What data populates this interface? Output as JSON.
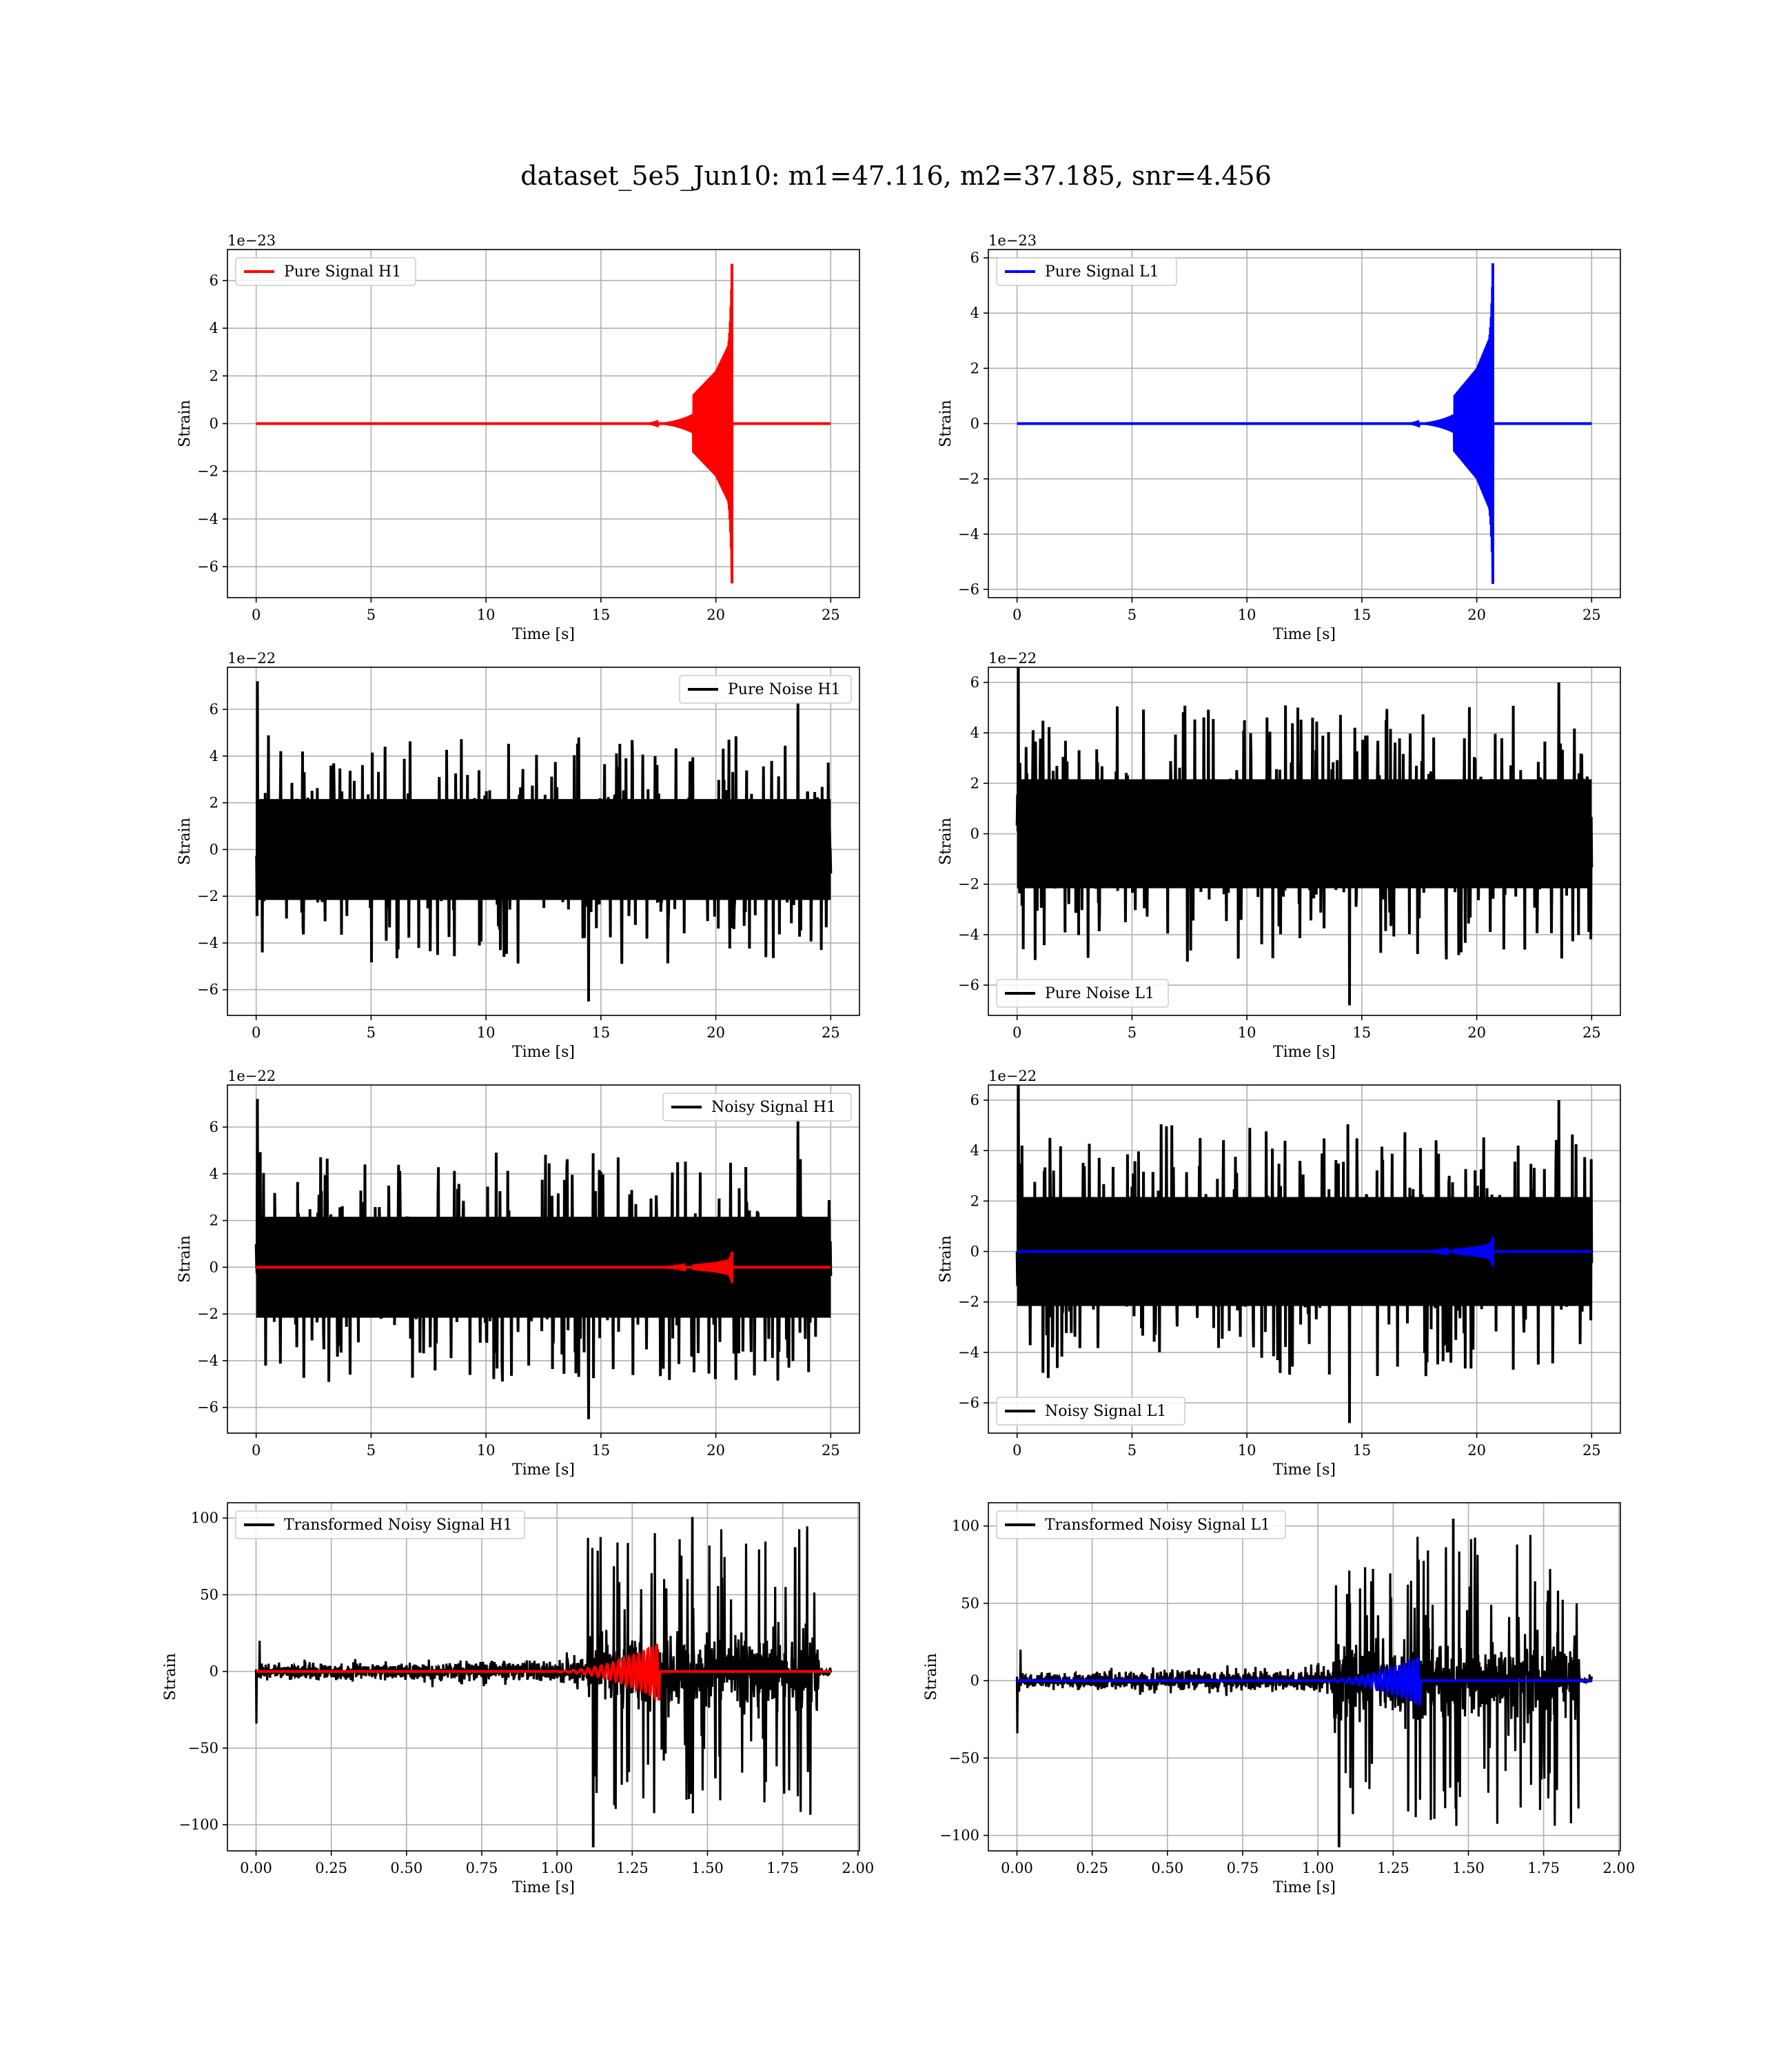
{
  "figure": {
    "suptitle": "dataset_5e5_Jun10: m1=47.116, m2=37.185, snr=4.456"
  },
  "colors": {
    "h1_signal": "#ff0000",
    "l1_signal": "#0000ff",
    "noise": "#000000",
    "grid": "#b0b0b0"
  },
  "chart_data": [
    {
      "id": "pure-signal-h1",
      "type": "line",
      "xlabel": "Time [s]",
      "ylabel": "Strain",
      "offset_text": "1e−23",
      "xlim": [
        -1.25,
        26.25
      ],
      "ylim": [
        -7.3,
        7.3
      ],
      "xticks": [
        0,
        5,
        10,
        15,
        20,
        25
      ],
      "xtick_labels": [
        "0",
        "5",
        "10",
        "15",
        "20",
        "25"
      ],
      "yticks": [
        -6,
        -4,
        -2,
        0,
        2,
        4,
        6
      ],
      "ytick_labels": [
        "−6",
        "−4",
        "−2",
        "0",
        "2",
        "4",
        "6"
      ],
      "legend": {
        "position": "upper-left"
      },
      "series": [
        {
          "name": "Pure Signal H1",
          "color": "#ff0000",
          "kind": "chirp",
          "x_range": [
            0,
            25
          ],
          "peak_t": 20.7,
          "env": 6.7,
          "flat_until": 16.5,
          "env_at_19": 1.2,
          "env_at_20": 2.2,
          "env_at_205": 3.2
        }
      ]
    },
    {
      "id": "pure-signal-l1",
      "type": "line",
      "xlabel": "Time [s]",
      "ylabel": "Strain",
      "offset_text": "1e−23",
      "xlim": [
        -1.25,
        26.25
      ],
      "ylim": [
        -6.3,
        6.3
      ],
      "xticks": [
        0,
        5,
        10,
        15,
        20,
        25
      ],
      "xtick_labels": [
        "0",
        "5",
        "10",
        "15",
        "20",
        "25"
      ],
      "yticks": [
        -6,
        -4,
        -2,
        0,
        2,
        4,
        6
      ],
      "ytick_labels": [
        "−6",
        "−4",
        "−2",
        "0",
        "2",
        "4",
        "6"
      ],
      "legend": {
        "position": "upper-left"
      },
      "series": [
        {
          "name": "Pure Signal L1",
          "color": "#0000ff",
          "kind": "chirp",
          "x_range": [
            0,
            25
          ],
          "peak_t": 20.7,
          "env": 5.8,
          "flat_until": 16.5,
          "env_at_19": 1.0,
          "env_at_20": 2.0,
          "env_at_205": 3.0
        }
      ]
    },
    {
      "id": "pure-noise-h1",
      "type": "line",
      "xlabel": "Time [s]",
      "ylabel": "Strain",
      "offset_text": "1e−22",
      "xlim": [
        -1.25,
        26.25
      ],
      "ylim": [
        -7.1,
        7.8
      ],
      "xticks": [
        0,
        5,
        10,
        15,
        20,
        25
      ],
      "xtick_labels": [
        "0",
        "5",
        "10",
        "15",
        "20",
        "25"
      ],
      "yticks": [
        -6,
        -4,
        -2,
        0,
        2,
        4,
        6
      ],
      "ytick_labels": [
        "−6",
        "−4",
        "−2",
        "0",
        "2",
        "4",
        "6"
      ],
      "legend": {
        "position": "upper-right"
      },
      "series": [
        {
          "name": "Pure Noise H1",
          "color": "#000000",
          "kind": "noise",
          "x_range": [
            0,
            25
          ],
          "band": 3.0,
          "spike_max": 6.3,
          "spike_min": -6.5
        }
      ]
    },
    {
      "id": "pure-noise-l1",
      "type": "line",
      "xlabel": "Time [s]",
      "ylabel": "Strain",
      "offset_text": "1e−22",
      "xlim": [
        -1.25,
        26.25
      ],
      "ylim": [
        -7.2,
        6.6
      ],
      "xticks": [
        0,
        5,
        10,
        15,
        20,
        25
      ],
      "xtick_labels": [
        "0",
        "5",
        "10",
        "15",
        "20",
        "25"
      ],
      "yticks": [
        -6,
        -4,
        -2,
        0,
        2,
        4,
        6
      ],
      "ytick_labels": [
        "−6",
        "−4",
        "−2",
        "0",
        "2",
        "4",
        "6"
      ],
      "legend": {
        "position": "lower-left"
      },
      "series": [
        {
          "name": "Pure Noise L1",
          "color": "#000000",
          "kind": "noise",
          "x_range": [
            0,
            25
          ],
          "band": 3.0,
          "spike_max": 6.0,
          "spike_min": -6.8
        }
      ]
    },
    {
      "id": "noisy-signal-h1",
      "type": "line",
      "xlabel": "Time [s]",
      "ylabel": "Strain",
      "offset_text": "1e−22",
      "xlim": [
        -1.25,
        26.25
      ],
      "ylim": [
        -7.1,
        7.8
      ],
      "xticks": [
        0,
        5,
        10,
        15,
        20,
        25
      ],
      "xtick_labels": [
        "0",
        "5",
        "10",
        "15",
        "20",
        "25"
      ],
      "yticks": [
        -6,
        -4,
        -2,
        0,
        2,
        4,
        6
      ],
      "ytick_labels": [
        "−6",
        "−4",
        "−2",
        "0",
        "2",
        "4",
        "6"
      ],
      "legend": {
        "position": "upper-right"
      },
      "series": [
        {
          "name": "Noisy Signal H1",
          "color": "#000000",
          "kind": "noise",
          "x_range": [
            0,
            25
          ],
          "band": 3.0,
          "spike_max": 6.3,
          "spike_min": -6.5
        },
        {
          "name": "",
          "color": "#ff0000",
          "kind": "chirp",
          "x_range": [
            0,
            25
          ],
          "peak_t": 20.7,
          "env": 0.67,
          "flat_until": 16.5,
          "env_at_19": 0.12,
          "env_at_20": 0.22,
          "env_at_205": 0.32
        }
      ]
    },
    {
      "id": "noisy-signal-l1",
      "type": "line",
      "xlabel": "Time [s]",
      "ylabel": "Strain",
      "offset_text": "1e−22",
      "xlim": [
        -1.25,
        26.25
      ],
      "ylim": [
        -7.2,
        6.6
      ],
      "xticks": [
        0,
        5,
        10,
        15,
        20,
        25
      ],
      "xtick_labels": [
        "0",
        "5",
        "10",
        "15",
        "20",
        "25"
      ],
      "yticks": [
        -6,
        -4,
        -2,
        0,
        2,
        4,
        6
      ],
      "ytick_labels": [
        "−6",
        "−4",
        "−2",
        "0",
        "2",
        "4",
        "6"
      ],
      "legend": {
        "position": "lower-left"
      },
      "series": [
        {
          "name": "Noisy Signal L1",
          "color": "#000000",
          "kind": "noise",
          "x_range": [
            0,
            25
          ],
          "band": 3.0,
          "spike_max": 6.0,
          "spike_min": -6.8
        },
        {
          "name": "",
          "color": "#0000ff",
          "kind": "chirp",
          "x_range": [
            0,
            25
          ],
          "peak_t": 20.7,
          "env": 0.58,
          "flat_until": 16.5,
          "env_at_19": 0.1,
          "env_at_20": 0.2,
          "env_at_205": 0.3
        }
      ]
    },
    {
      "id": "transformed-noisy-signal-h1",
      "type": "line",
      "xlabel": "Time [s]",
      "ylabel": "Strain",
      "offset_text": "",
      "xlim": [
        -0.095,
        2.005
      ],
      "ylim": [
        -117,
        110
      ],
      "xticks": [
        0,
        0.25,
        0.5,
        0.75,
        1.0,
        1.25,
        1.5,
        1.75,
        2.0
      ],
      "xtick_labels": [
        "0.00",
        "0.25",
        "0.50",
        "0.75",
        "1.00",
        "1.25",
        "1.50",
        "1.75",
        "2.00"
      ],
      "yticks": [
        -100,
        -50,
        0,
        50,
        100
      ],
      "ytick_labels": [
        "−100",
        "−50",
        "0",
        "50",
        "100"
      ],
      "legend": {
        "position": "upper-left"
      },
      "series": [
        {
          "name": "Transformed Noisy Signal H1",
          "color": "#000000",
          "kind": "whitened",
          "x_range": [
            0,
            1.91
          ],
          "burst_start": 1.1,
          "burst_end": 1.87,
          "spike_max": 100,
          "spike_min": -114
        },
        {
          "name": "",
          "color": "#ff0000",
          "kind": "chirp_short",
          "x_range": [
            0,
            1.91
          ],
          "peak_t": 1.33,
          "env": 18
        }
      ]
    },
    {
      "id": "transformed-noisy-signal-l1",
      "type": "line",
      "xlabel": "Time [s]",
      "ylabel": "Strain",
      "offset_text": "",
      "xlim": [
        -0.095,
        2.005
      ],
      "ylim": [
        -110,
        115
      ],
      "xticks": [
        0,
        0.25,
        0.5,
        0.75,
        1.0,
        1.25,
        1.5,
        1.75,
        2.0
      ],
      "xtick_labels": [
        "0.00",
        "0.25",
        "0.50",
        "0.75",
        "1.00",
        "1.25",
        "1.50",
        "1.75",
        "2.00"
      ],
      "yticks": [
        -100,
        -50,
        0,
        50,
        100
      ],
      "ytick_labels": [
        "−100",
        "−50",
        "0",
        "50",
        "100"
      ],
      "legend": {
        "position": "upper-left"
      },
      "series": [
        {
          "name": "Transformed Noisy Signal L1",
          "color": "#000000",
          "kind": "whitened",
          "x_range": [
            0,
            1.91
          ],
          "burst_start": 1.05,
          "burst_end": 1.87,
          "spike_max": 104,
          "spike_min": -107
        },
        {
          "name": "",
          "color": "#0000ff",
          "kind": "chirp_short",
          "x_range": [
            0,
            1.91
          ],
          "peak_t": 1.33,
          "env": 15
        }
      ]
    }
  ]
}
